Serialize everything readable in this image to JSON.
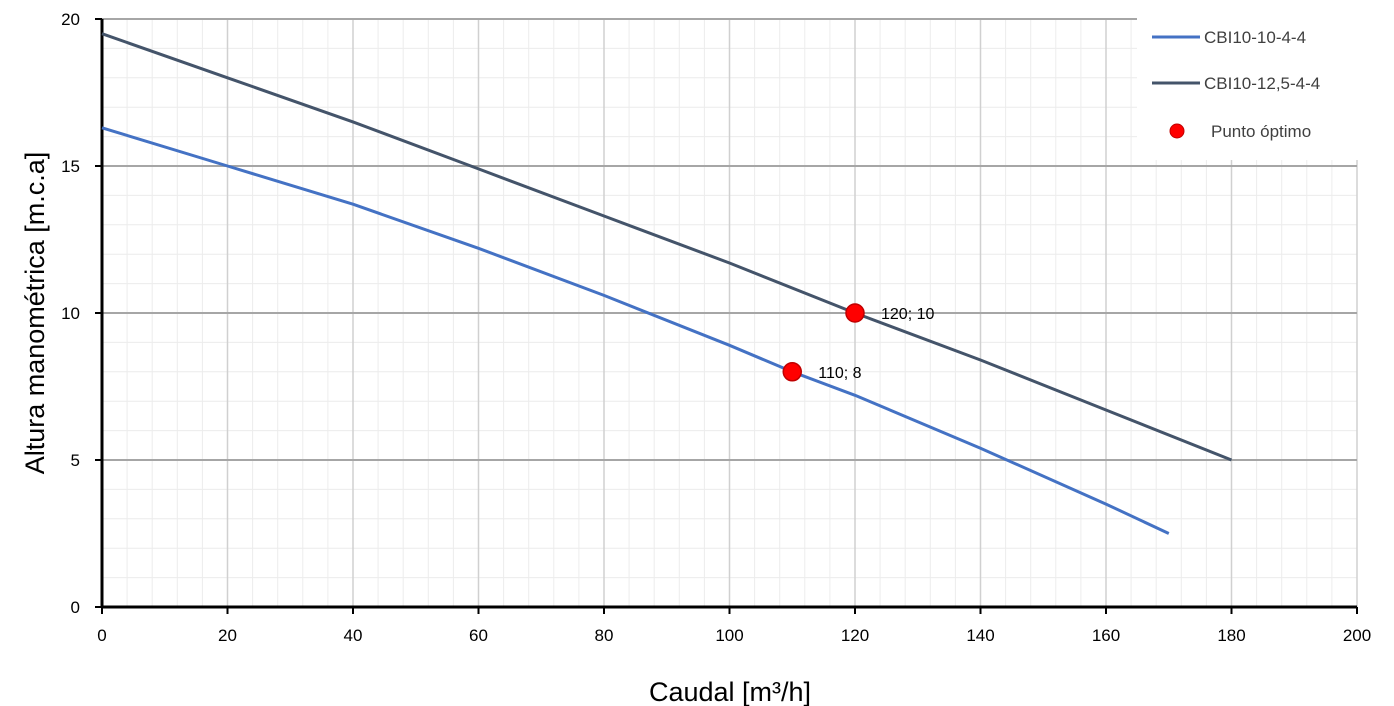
{
  "chart_data": {
    "type": "line",
    "title": "",
    "xlabel": "Caudal [m³/h]",
    "ylabel": "Altura manométrica [m.c.a]",
    "xlim": [
      0,
      200
    ],
    "ylim": [
      0,
      20
    ],
    "x_ticks": [
      0,
      20,
      40,
      60,
      80,
      100,
      120,
      140,
      160,
      180,
      200
    ],
    "y_ticks": [
      0,
      5,
      10,
      15,
      20
    ],
    "grid": true,
    "legend_position": "top-right",
    "series": [
      {
        "name": "CBI10-10-4-4",
        "color": "#4472C4",
        "points": [
          [
            0,
            16.3
          ],
          [
            20,
            15.0
          ],
          [
            40,
            13.7
          ],
          [
            60,
            12.2
          ],
          [
            80,
            10.6
          ],
          [
            100,
            8.9
          ],
          [
            110,
            8.0
          ],
          [
            120,
            7.2
          ],
          [
            140,
            5.4
          ],
          [
            160,
            3.5
          ],
          [
            170,
            2.5
          ]
        ]
      },
      {
        "name": "CBI10-12,5-4-4",
        "color": "#44546A",
        "points": [
          [
            0,
            19.5
          ],
          [
            20,
            18.0
          ],
          [
            40,
            16.5
          ],
          [
            60,
            14.9
          ],
          [
            80,
            13.3
          ],
          [
            100,
            11.7
          ],
          [
            120,
            10.0
          ],
          [
            140,
            8.4
          ],
          [
            160,
            6.7
          ],
          [
            180,
            5.0
          ]
        ]
      },
      {
        "name": "Punto óptimo",
        "type": "scatter",
        "color": "#FF0000",
        "points": [
          {
            "x": 110,
            "y": 8,
            "label": "110; 8"
          },
          {
            "x": 120,
            "y": 10,
            "label": "120; 10"
          }
        ]
      }
    ]
  }
}
